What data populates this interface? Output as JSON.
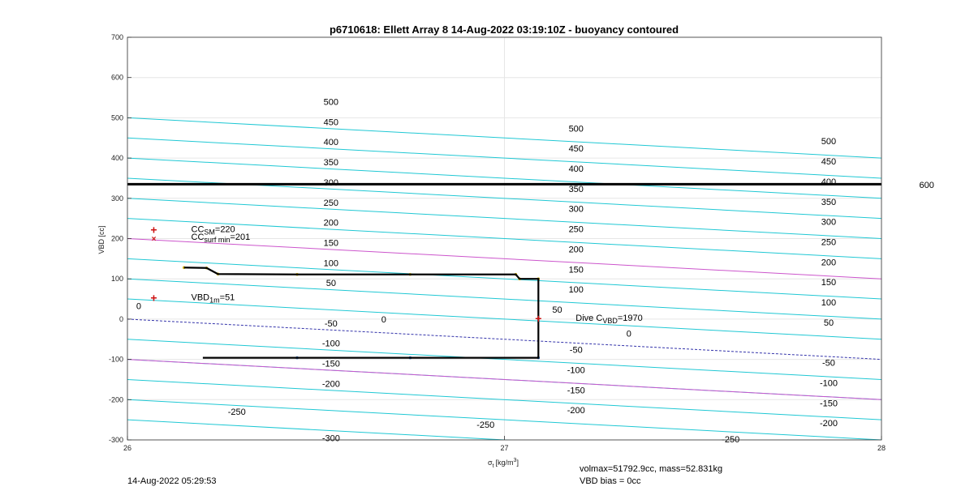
{
  "chart_data": {
    "type": "line",
    "title": "p6710618: Ellett Array 8 14-Aug-2022 03:19:10Z - buoyancy contoured",
    "xlabel": "σt [kg/m3]",
    "xlabel_main": "σ",
    "xlabel_sub": "t",
    "xlabel_unit": "[kg/m",
    "xlabel_sup": "3",
    "xlabel_close": "]",
    "ylabel": "VBD [cc]",
    "xlim": [
      26,
      28
    ],
    "ylim": [
      -300,
      700
    ],
    "xticks": [
      26,
      27,
      28
    ],
    "yticks": [
      -300,
      -200,
      -100,
      0,
      100,
      200,
      300,
      400,
      500,
      600,
      700
    ],
    "grid": true,
    "contour_lines": {
      "cyan_levels": [
        -300,
        -250,
        -200,
        -150,
        -100,
        -50,
        50,
        100,
        150,
        250,
        300,
        350,
        400,
        450,
        500
      ],
      "magenta_levels": [
        -100,
        200
      ],
      "blue_dashed_level": 0,
      "thick_level": 600,
      "labels": [
        {
          "text": "500",
          "x": 26.54,
          "y": 540
        },
        {
          "text": "450",
          "x": 26.54,
          "y": 490
        },
        {
          "text": "400",
          "x": 26.54,
          "y": 440
        },
        {
          "text": "350",
          "x": 26.54,
          "y": 390
        },
        {
          "text": "300",
          "x": 26.54,
          "y": 340
        },
        {
          "text": "250",
          "x": 26.54,
          "y": 290
        },
        {
          "text": "200",
          "x": 26.54,
          "y": 240
        },
        {
          "text": "150",
          "x": 26.54,
          "y": 190
        },
        {
          "text": "100",
          "x": 26.54,
          "y": 140
        },
        {
          "text": "50",
          "x": 26.54,
          "y": 90
        },
        {
          "text": "0",
          "x": 26.68,
          "y": 0
        },
        {
          "text": "-50",
          "x": 26.54,
          "y": -10
        },
        {
          "text": "-100",
          "x": 26.54,
          "y": -60
        },
        {
          "text": "-150",
          "x": 26.54,
          "y": -110
        },
        {
          "text": "-200",
          "x": 26.54,
          "y": -160
        },
        {
          "text": "-250",
          "x": 26.29,
          "y": -230
        },
        {
          "text": "-300",
          "x": 26.54,
          "y": -295
        },
        {
          "text": "500",
          "x": 27.19,
          "y": 474
        },
        {
          "text": "450",
          "x": 27.19,
          "y": 424
        },
        {
          "text": "400",
          "x": 27.19,
          "y": 374
        },
        {
          "text": "350",
          "x": 27.19,
          "y": 324
        },
        {
          "text": "300",
          "x": 27.19,
          "y": 274
        },
        {
          "text": "250",
          "x": 27.19,
          "y": 224
        },
        {
          "text": "200",
          "x": 27.19,
          "y": 174
        },
        {
          "text": "150",
          "x": 27.19,
          "y": 124
        },
        {
          "text": "100",
          "x": 27.19,
          "y": 74
        },
        {
          "text": "50",
          "x": 27.14,
          "y": 24
        },
        {
          "text": "-50",
          "x": 27.19,
          "y": -76
        },
        {
          "text": "-100",
          "x": 27.19,
          "y": -126
        },
        {
          "text": "-150",
          "x": 27.19,
          "y": -176
        },
        {
          "text": "-200",
          "x": 27.19,
          "y": -226
        },
        {
          "text": "-250",
          "x": 26.95,
          "y": -262
        },
        {
          "text": "0",
          "x": 27.33,
          "y": -35
        },
        {
          "text": "500",
          "x": 27.86,
          "y": 442
        },
        {
          "text": "450",
          "x": 27.86,
          "y": 392
        },
        {
          "text": "400",
          "x": 27.86,
          "y": 342
        },
        {
          "text": "350",
          "x": 27.86,
          "y": 292
        },
        {
          "text": "300",
          "x": 27.86,
          "y": 242
        },
        {
          "text": "250",
          "x": 27.86,
          "y": 192
        },
        {
          "text": "200",
          "x": 27.86,
          "y": 142
        },
        {
          "text": "150",
          "x": 27.86,
          "y": 92
        },
        {
          "text": "100",
          "x": 27.86,
          "y": 42
        },
        {
          "text": "50",
          "x": 27.86,
          "y": -8
        },
        {
          "text": "-50",
          "x": 27.86,
          "y": -108
        },
        {
          "text": "-100",
          "x": 27.86,
          "y": -158
        },
        {
          "text": "-150",
          "x": 27.86,
          "y": -208
        },
        {
          "text": "-200",
          "x": 27.86,
          "y": -258
        },
        {
          "text": "-250",
          "x": 27.6,
          "y": -298
        },
        {
          "text": "0",
          "x": 26.03,
          "y": 33
        },
        {
          "text": "600",
          "x": 28.12,
          "y": 334
        }
      ]
    },
    "series": [
      {
        "color": "#000000",
        "x": [
          26.15,
          26.21,
          26.24,
          26.45,
          26.75,
          27.03,
          27.04,
          27.09,
          27.09,
          26.75,
          26.45,
          26.2
        ],
        "y": [
          128,
          127,
          112,
          111,
          111,
          111,
          100,
          100,
          -96,
          -96,
          -96,
          -96
        ]
      }
    ],
    "markers": [
      {
        "label": "CC",
        "sub": "SM",
        "value": "=220",
        "x": 26.07,
        "y": 220,
        "symbol": "+"
      },
      {
        "label": "CC",
        "sub": "surf min",
        "value": "=201",
        "x": 26.07,
        "y": 201,
        "symbol": "x"
      },
      {
        "label": "VBD",
        "sub": "1m",
        "value": "=51",
        "x": 26.07,
        "y": 51,
        "symbol": "+"
      },
      {
        "label": "Dive C",
        "sub": "VBD",
        "value": "=1970",
        "x": 27.09,
        "y": 0,
        "symbol": "+"
      }
    ],
    "colors": {
      "cyan": "#20c8d4",
      "magenta": "#cc55cc",
      "blue": "#3333aa",
      "thick": "#000000",
      "marker": "#cc1111"
    }
  },
  "footer": {
    "timestamp": "14-Aug-2022 05:29:53",
    "volmax": "volmax=51792.9cc, mass=52.831kg",
    "vbd_bias": "VBD bias = 0cc"
  }
}
